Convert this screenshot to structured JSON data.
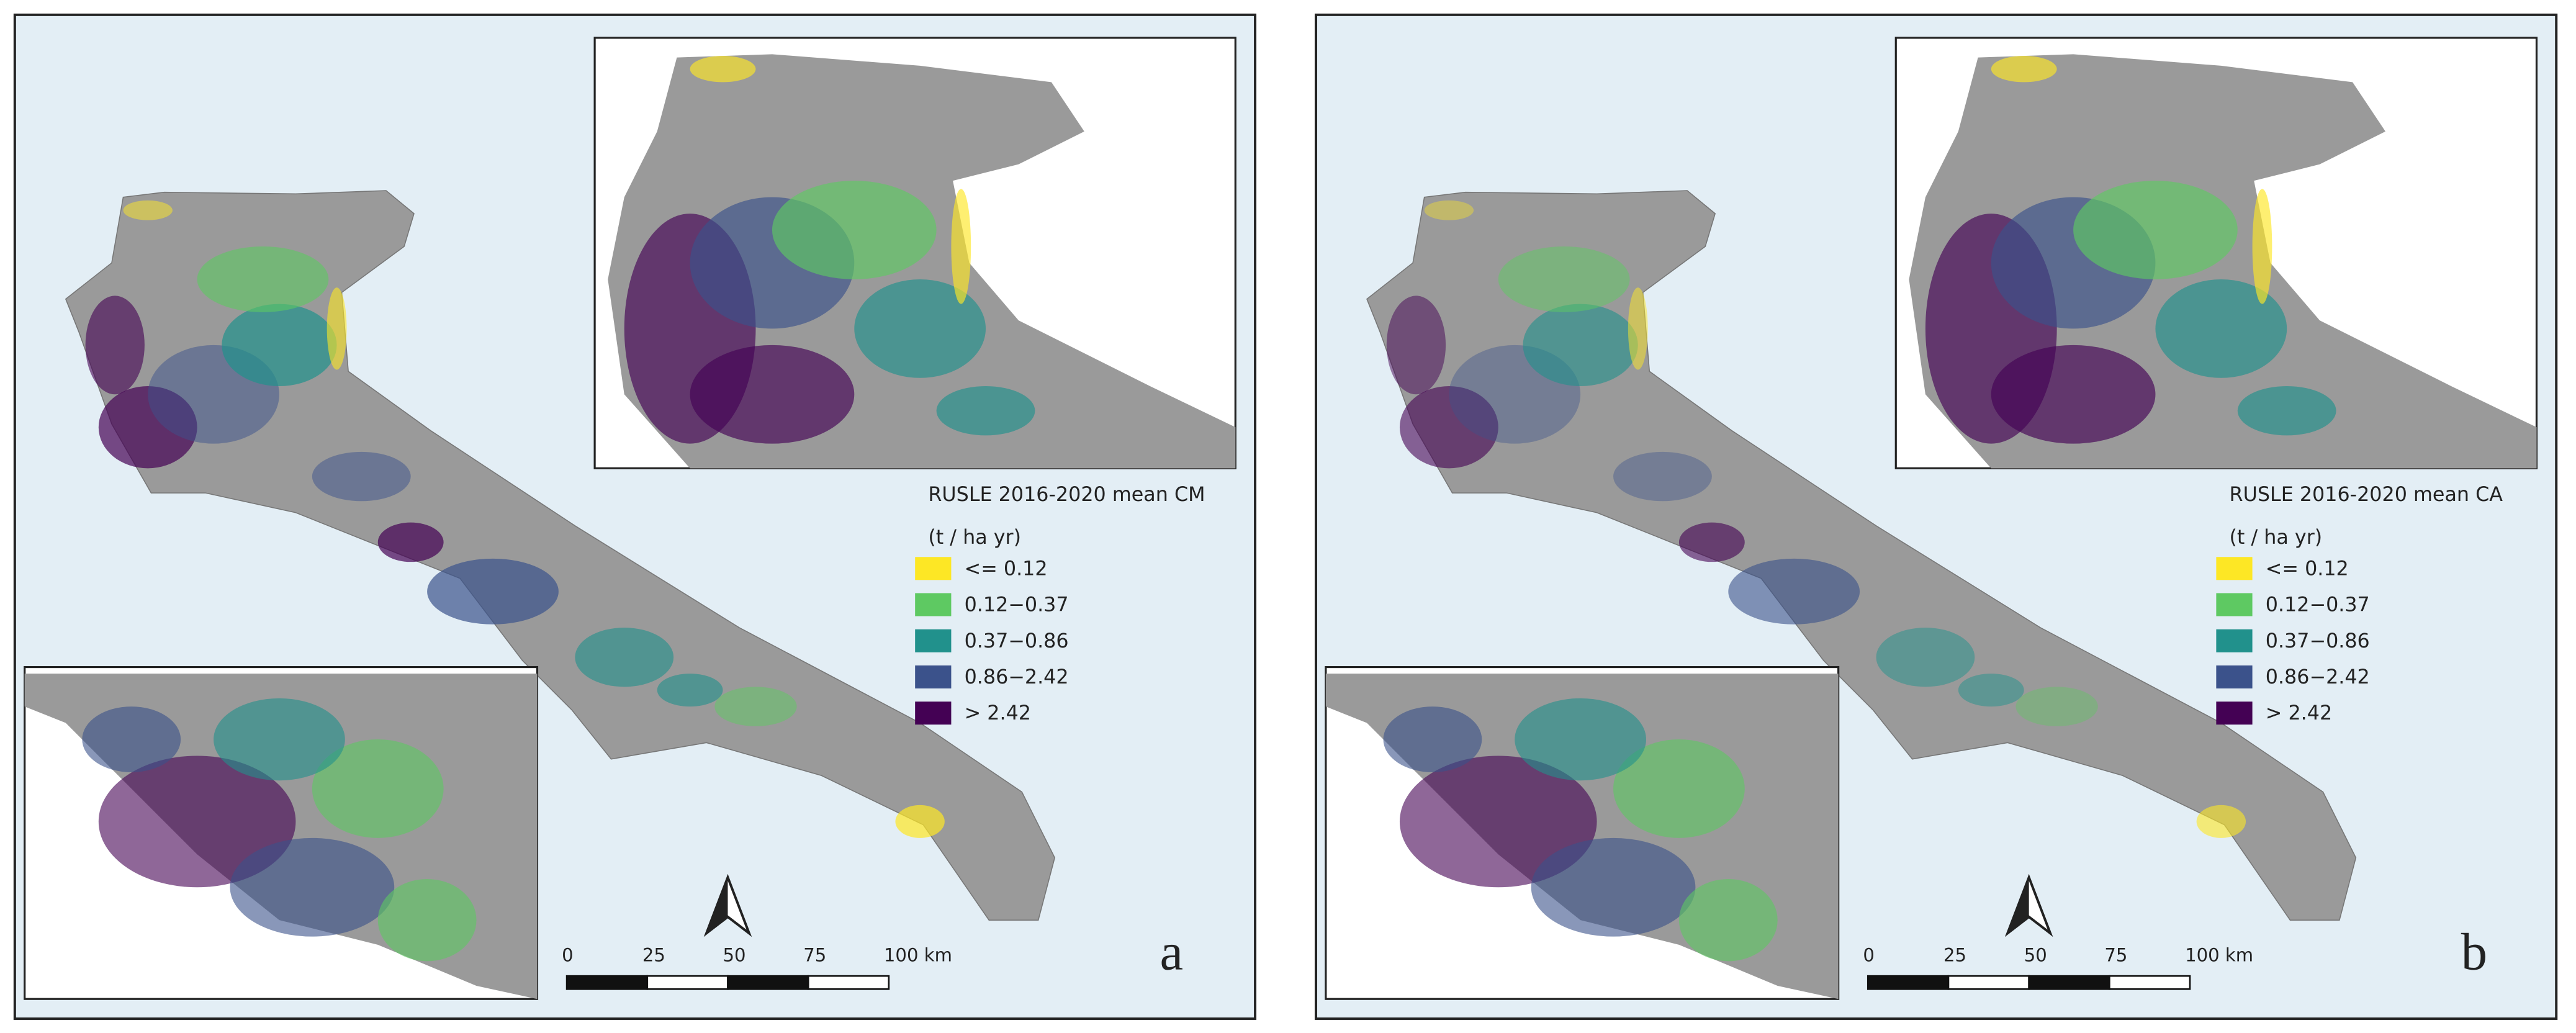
{
  "panels": [
    {
      "label": "a",
      "legend": {
        "title": "RUSLE 2016-2020 mean CM",
        "unit": "(t / ha yr)",
        "items": [
          {
            "label": "<= 0.12",
            "color": "#fde725"
          },
          {
            "label": "0.12−0.37",
            "color": "#5ec962"
          },
          {
            "label": "0.37−0.86",
            "color": "#21918c"
          },
          {
            "label": "0.86−2.42",
            "color": "#3b528b"
          },
          {
            "label": "> 2.42",
            "color": "#440154"
          }
        ]
      },
      "scale_bar": {
        "ticks": [
          "0",
          "25",
          "50",
          "75",
          "100 km"
        ]
      }
    },
    {
      "label": "b",
      "legend": {
        "title": "RUSLE 2016-2020 mean CA",
        "unit": "(t / ha yr)",
        "items": [
          {
            "label": "<= 0.12",
            "color": "#fde725"
          },
          {
            "label": "0.12−0.37",
            "color": "#5ec962"
          },
          {
            "label": "0.37−0.86",
            "color": "#21918c"
          },
          {
            "label": "0.86−2.42",
            "color": "#3b528b"
          },
          {
            "label": "> 2.42",
            "color": "#440154"
          }
        ]
      },
      "scale_bar": {
        "ticks": [
          "0",
          "25",
          "50",
          "75",
          "100 km"
        ]
      }
    }
  ]
}
